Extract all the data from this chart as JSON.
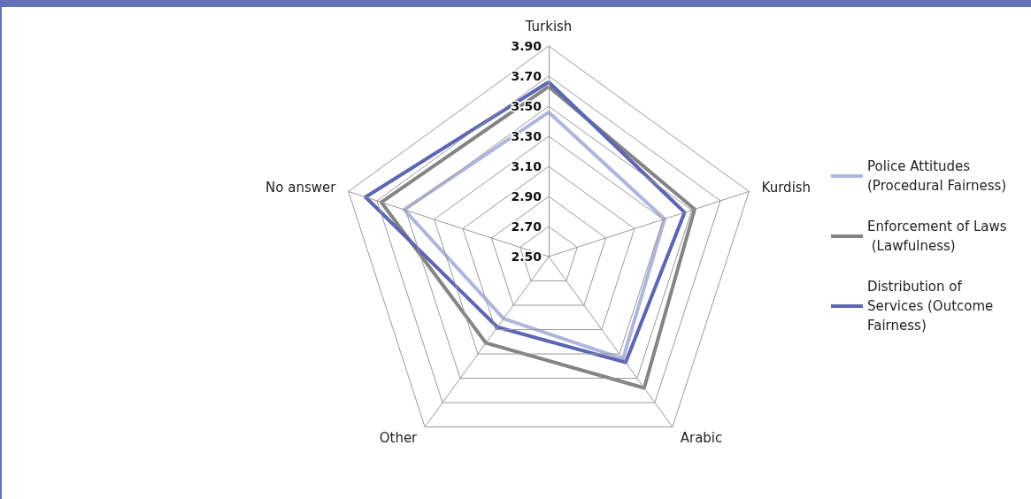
{
  "chart_data": {
    "type": "radar",
    "categories": [
      "Turkish",
      "Kurdish",
      "Arabic",
      "Other",
      "No answer"
    ],
    "ylim": [
      2.5,
      3.9
    ],
    "yticks": [
      {
        "value": 2.5,
        "label": "2.50"
      },
      {
        "value": 2.7,
        "label": "2.70"
      },
      {
        "value": 2.9,
        "label": "2.90"
      },
      {
        "value": 3.1,
        "label": "3.10"
      },
      {
        "value": 3.3,
        "label": "3.30"
      },
      {
        "value": 3.5,
        "label": "3.50"
      },
      {
        "value": 3.7,
        "label": "3.70"
      },
      {
        "value": 3.9,
        "label": "3.90"
      }
    ],
    "series": [
      {
        "name": "Police Attitudes (Procedural Fairness)",
        "color": "#b0b5dc",
        "values": [
          3.46,
          3.31,
          3.34,
          3.01,
          3.51
        ]
      },
      {
        "name": "Enforcement of Laws (Lawfulness)",
        "color": "#848484",
        "values": [
          3.63,
          3.52,
          3.58,
          3.21,
          3.67
        ]
      },
      {
        "name": "Distribution of Services (Outcome Fairness)",
        "color": "#5c66b2",
        "values": [
          3.66,
          3.45,
          3.37,
          3.08,
          3.78
        ]
      }
    ],
    "legend": "right",
    "grid": true,
    "marker": "none",
    "line_style": "solid"
  }
}
